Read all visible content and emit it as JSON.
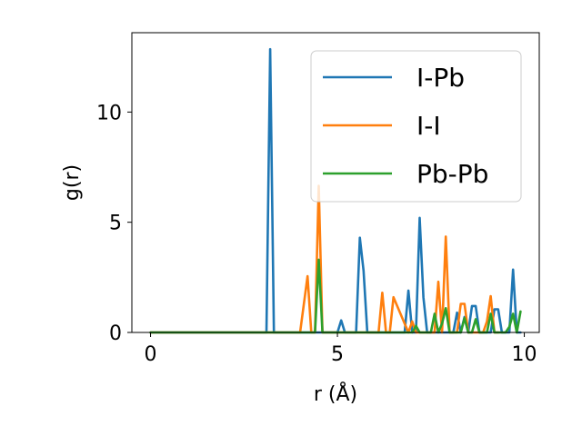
{
  "chart_data": {
    "type": "line",
    "xlabel": "r (Å)",
    "ylabel": "g(r)",
    "xlim": [
      -0.5,
      10.4
    ],
    "ylim": [
      0,
      13.6
    ],
    "xticks": [
      0,
      5,
      10
    ],
    "yticks": [
      0,
      5,
      10
    ],
    "xtick_labels": [
      "0",
      "5",
      "10"
    ],
    "ytick_labels": [
      "0",
      "5",
      "10"
    ],
    "grid": false,
    "legend_position": "top-right",
    "series": [
      {
        "name": "I-Pb",
        "color": "#1f77b4",
        "x": [
          0,
          3.0,
          3.1,
          3.2,
          3.3,
          3.4,
          5.0,
          5.1,
          5.2,
          5.5,
          5.6,
          5.7,
          5.8,
          6.8,
          6.9,
          7.0,
          7.1,
          7.2,
          7.3,
          7.4,
          8.1,
          8.2,
          8.3,
          8.4,
          8.5,
          8.6,
          8.7,
          8.8,
          8.9,
          9.0,
          9.1,
          9.2,
          9.3,
          9.4,
          9.5,
          9.6,
          9.7,
          9.8,
          9.9
        ],
        "y": [
          0,
          0,
          0,
          12.85,
          0,
          0,
          0,
          0.55,
          0,
          0,
          4.3,
          2.8,
          0,
          0,
          1.9,
          0,
          0,
          5.2,
          1.6,
          0,
          0,
          0.9,
          0,
          0.7,
          0,
          1.2,
          1.2,
          0,
          0,
          0,
          0,
          1.05,
          1.05,
          0,
          0,
          0,
          2.85,
          0,
          0
        ]
      },
      {
        "name": "I-I",
        "color": "#ff7f0e",
        "x": [
          0,
          3.9,
          4.0,
          4.2,
          4.3,
          4.4,
          4.5,
          4.6,
          6.0,
          6.1,
          6.2,
          6.3,
          6.4,
          6.5,
          6.9,
          7.0,
          7.1,
          7.6,
          7.7,
          7.8,
          7.9,
          8.0,
          8.2,
          8.3,
          8.4,
          8.5,
          8.6,
          8.9,
          9.0,
          9.1,
          9.2,
          9.3
        ],
        "y": [
          0,
          0,
          0,
          2.55,
          0,
          0,
          6.65,
          0,
          0,
          0,
          1.8,
          0,
          0,
          1.6,
          0,
          0.5,
          0,
          0,
          2.3,
          0,
          4.35,
          0,
          0,
          1.3,
          1.3,
          0,
          0,
          0,
          0.5,
          1.65,
          0,
          0
        ]
      },
      {
        "name": "Pb-Pb",
        "color": "#2ca02c",
        "x": [
          0,
          4.3,
          4.4,
          4.5,
          4.6,
          7.0,
          7.1,
          7.2,
          7.3,
          7.5,
          7.6,
          7.7,
          7.8,
          7.9,
          8.0,
          8.1,
          8.2,
          8.3,
          8.4,
          8.5,
          8.6,
          8.7,
          8.8,
          8.9,
          9.0,
          9.1,
          9.2,
          9.5,
          9.6,
          9.7,
          9.8,
          9.9
        ],
        "y": [
          0,
          0,
          0,
          3.3,
          0,
          0,
          0.3,
          0,
          0,
          0,
          0.85,
          0,
          0.4,
          1.1,
          0,
          0,
          0,
          0,
          0.65,
          0,
          0,
          0.6,
          0,
          0,
          0,
          0.85,
          0,
          0,
          0.25,
          0.85,
          0,
          0.95
        ]
      }
    ]
  }
}
